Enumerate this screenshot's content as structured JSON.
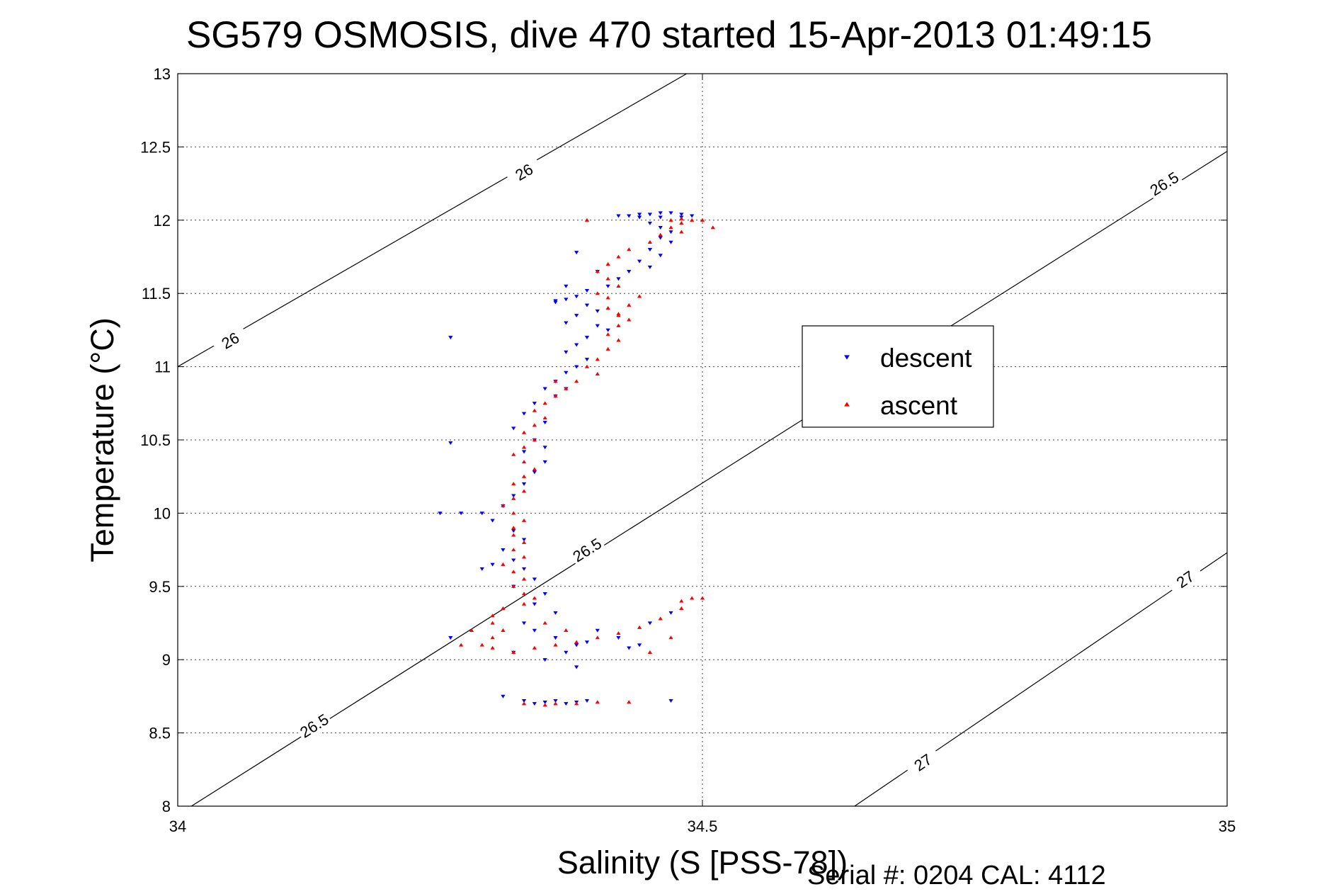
{
  "chart_data": {
    "type": "scatter",
    "title": "SG579 OSMOSIS, dive 470 started 15-Apr-2013 01:49:15",
    "xlabel": "Salinity (S [PSS-78])",
    "ylabel": "Temperature (°C)",
    "xlim": [
      34,
      35
    ],
    "ylim": [
      8,
      13
    ],
    "xticks": [
      34,
      34.5,
      35
    ],
    "xtick_labels": [
      "34",
      "34.5",
      "35"
    ],
    "yticks": [
      8,
      8.5,
      9,
      9.5,
      10,
      10.5,
      11,
      11.5,
      12,
      12.5,
      13
    ],
    "ytick_labels": [
      "8",
      "8.5",
      "9",
      "9.5",
      "10",
      "10.5",
      "11",
      "11.5",
      "12",
      "12.5",
      "13"
    ],
    "grid": true,
    "legend_position": "right",
    "footer": "Serial #: 0204  CAL: 4112",
    "density_contours": [
      {
        "level": "26",
        "points": [
          [
            34.0,
            11.0
          ],
          [
            34.485,
            13.0
          ]
        ],
        "labels": [
          [
            34.05,
            11.18
          ],
          [
            34.33,
            12.33
          ]
        ]
      },
      {
        "level": "26.5",
        "points": [
          [
            34.013,
            8.0
          ],
          [
            35.0,
            12.47
          ]
        ],
        "labels": [
          [
            34.13,
            8.55
          ],
          [
            34.39,
            9.75
          ],
          [
            34.94,
            12.25
          ]
        ]
      },
      {
        "level": "27",
        "points": [
          [
            34.645,
            8.0
          ],
          [
            35.0,
            9.73
          ]
        ],
        "labels": [
          [
            34.71,
            8.3
          ],
          [
            34.96,
            9.55
          ]
        ]
      }
    ],
    "series": [
      {
        "name": "descent",
        "color": "#0000ff",
        "marker": "triangle-down",
        "points": [
          [
            34.42,
            12.03
          ],
          [
            34.43,
            12.03
          ],
          [
            34.44,
            12.04
          ],
          [
            34.45,
            12.04
          ],
          [
            34.46,
            12.05
          ],
          [
            34.47,
            12.05
          ],
          [
            34.48,
            12.04
          ],
          [
            34.49,
            12.03
          ],
          [
            34.44,
            12.02
          ],
          [
            34.46,
            12.02
          ],
          [
            34.48,
            12.02
          ],
          [
            34.45,
            11.98
          ],
          [
            34.46,
            11.95
          ],
          [
            34.47,
            11.92
          ],
          [
            34.46,
            11.88
          ],
          [
            34.47,
            11.85
          ],
          [
            34.45,
            11.8
          ],
          [
            34.46,
            11.76
          ],
          [
            34.44,
            11.72
          ],
          [
            34.45,
            11.68
          ],
          [
            34.43,
            11.65
          ],
          [
            34.42,
            11.6
          ],
          [
            34.41,
            11.55
          ],
          [
            34.39,
            11.52
          ],
          [
            34.38,
            11.48
          ],
          [
            34.37,
            11.46
          ],
          [
            34.36,
            11.44
          ],
          [
            34.39,
            11.42
          ],
          [
            34.4,
            11.38
          ],
          [
            34.38,
            11.35
          ],
          [
            34.37,
            11.3
          ],
          [
            34.4,
            11.28
          ],
          [
            34.41,
            11.25
          ],
          [
            34.39,
            11.2
          ],
          [
            34.38,
            11.15
          ],
          [
            34.37,
            11.1
          ],
          [
            34.39,
            11.05
          ],
          [
            34.38,
            11.0
          ],
          [
            34.37,
            10.96
          ],
          [
            34.36,
            10.9
          ],
          [
            34.35,
            10.85
          ],
          [
            34.36,
            10.8
          ],
          [
            34.34,
            10.75
          ],
          [
            34.33,
            10.68
          ],
          [
            34.35,
            10.62
          ],
          [
            34.32,
            10.58
          ],
          [
            34.34,
            10.5
          ],
          [
            34.33,
            10.42
          ],
          [
            34.35,
            10.35
          ],
          [
            34.34,
            10.28
          ],
          [
            34.33,
            10.2
          ],
          [
            34.32,
            10.12
          ],
          [
            34.31,
            10.05
          ],
          [
            34.29,
            10.0
          ],
          [
            34.3,
            9.95
          ],
          [
            34.32,
            9.88
          ],
          [
            34.33,
            9.82
          ],
          [
            34.31,
            9.75
          ],
          [
            34.32,
            9.68
          ],
          [
            34.33,
            9.62
          ],
          [
            34.34,
            9.55
          ],
          [
            34.32,
            9.5
          ],
          [
            34.35,
            9.45
          ],
          [
            34.34,
            9.38
          ],
          [
            34.36,
            9.32
          ],
          [
            34.33,
            9.25
          ],
          [
            34.34,
            9.2
          ],
          [
            34.36,
            9.15
          ],
          [
            34.38,
            9.1
          ],
          [
            34.37,
            9.05
          ],
          [
            34.35,
            9.0
          ],
          [
            34.38,
            8.95
          ],
          [
            34.39,
            9.12
          ],
          [
            34.4,
            9.2
          ],
          [
            34.45,
            9.25
          ],
          [
            34.47,
            9.32
          ],
          [
            34.44,
            9.1
          ],
          [
            34.43,
            9.08
          ],
          [
            34.42,
            9.15
          ],
          [
            34.33,
            8.72
          ],
          [
            34.34,
            8.7
          ],
          [
            34.35,
            8.71
          ],
          [
            34.36,
            8.72
          ],
          [
            34.37,
            8.7
          ],
          [
            34.38,
            8.71
          ],
          [
            34.39,
            8.72
          ],
          [
            34.31,
            8.75
          ],
          [
            34.47,
            8.72
          ],
          [
            34.3,
            9.65
          ],
          [
            34.25,
            10.0
          ],
          [
            34.27,
            10.0
          ],
          [
            34.26,
            10.48
          ],
          [
            34.26,
            11.2
          ],
          [
            34.37,
            11.55
          ],
          [
            34.36,
            11.45
          ],
          [
            34.4,
            11.65
          ],
          [
            34.29,
            9.62
          ],
          [
            34.32,
            9.05
          ],
          [
            34.26,
            9.15
          ],
          [
            34.38,
            11.78
          ],
          [
            34.35,
            10.45
          ],
          [
            34.37,
            10.85
          ]
        ]
      },
      {
        "name": "ascent",
        "color": "#ff0000",
        "marker": "triangle-up",
        "points": [
          [
            34.47,
            12.0
          ],
          [
            34.48,
            12.01
          ],
          [
            34.49,
            12.0
          ],
          [
            34.5,
            12.0
          ],
          [
            34.48,
            11.98
          ],
          [
            34.47,
            11.95
          ],
          [
            34.48,
            11.92
          ],
          [
            34.46,
            11.9
          ],
          [
            34.45,
            11.85
          ],
          [
            34.43,
            11.8
          ],
          [
            34.42,
            11.75
          ],
          [
            34.41,
            11.7
          ],
          [
            34.4,
            11.65
          ],
          [
            34.41,
            11.6
          ],
          [
            34.42,
            11.55
          ],
          [
            34.4,
            11.5
          ],
          [
            34.41,
            11.47
          ],
          [
            34.43,
            11.42
          ],
          [
            34.41,
            11.4
          ],
          [
            34.42,
            11.36
          ],
          [
            34.43,
            11.32
          ],
          [
            34.42,
            11.28
          ],
          [
            34.41,
            11.22
          ],
          [
            34.42,
            11.18
          ],
          [
            34.41,
            11.12
          ],
          [
            34.4,
            11.05
          ],
          [
            34.39,
            11.0
          ],
          [
            34.4,
            10.95
          ],
          [
            34.38,
            10.9
          ],
          [
            34.37,
            10.85
          ],
          [
            34.36,
            10.8
          ],
          [
            34.35,
            10.75
          ],
          [
            34.34,
            10.7
          ],
          [
            34.35,
            10.65
          ],
          [
            34.34,
            10.6
          ],
          [
            34.33,
            10.55
          ],
          [
            34.34,
            10.5
          ],
          [
            34.33,
            10.45
          ],
          [
            34.32,
            10.4
          ],
          [
            34.33,
            10.35
          ],
          [
            34.34,
            10.3
          ],
          [
            34.33,
            10.25
          ],
          [
            34.32,
            10.2
          ],
          [
            34.33,
            10.15
          ],
          [
            34.32,
            10.1
          ],
          [
            34.31,
            10.05
          ],
          [
            34.32,
            10.0
          ],
          [
            34.33,
            9.95
          ],
          [
            34.32,
            9.9
          ],
          [
            34.32,
            9.85
          ],
          [
            34.33,
            9.8
          ],
          [
            34.32,
            9.75
          ],
          [
            34.33,
            9.7
          ],
          [
            34.31,
            9.65
          ],
          [
            34.32,
            9.6
          ],
          [
            34.33,
            9.55
          ],
          [
            34.32,
            9.5
          ],
          [
            34.33,
            9.45
          ],
          [
            34.34,
            9.42
          ],
          [
            34.33,
            9.38
          ],
          [
            34.31,
            9.35
          ],
          [
            34.3,
            9.3
          ],
          [
            34.3,
            9.25
          ],
          [
            34.31,
            9.2
          ],
          [
            34.3,
            9.15
          ],
          [
            34.29,
            9.1
          ],
          [
            34.3,
            9.08
          ],
          [
            34.32,
            9.05
          ],
          [
            34.34,
            9.08
          ],
          [
            34.36,
            9.1
          ],
          [
            34.38,
            9.12
          ],
          [
            34.4,
            9.15
          ],
          [
            34.42,
            9.18
          ],
          [
            34.44,
            9.22
          ],
          [
            34.46,
            9.28
          ],
          [
            34.48,
            9.35
          ],
          [
            34.5,
            9.42
          ],
          [
            34.49,
            9.42
          ],
          [
            34.48,
            9.4
          ],
          [
            34.33,
            8.7
          ],
          [
            34.35,
            8.69
          ],
          [
            34.36,
            8.7
          ],
          [
            34.38,
            8.7
          ],
          [
            34.4,
            8.71
          ],
          [
            34.43,
            8.71
          ],
          [
            34.39,
            12.0
          ],
          [
            34.51,
            11.95
          ],
          [
            34.28,
            9.2
          ],
          [
            34.27,
            9.1
          ],
          [
            34.37,
            9.2
          ],
          [
            34.45,
            9.05
          ],
          [
            34.47,
            9.15
          ],
          [
            34.35,
            9.25
          ],
          [
            34.44,
            11.48
          ],
          [
            34.42,
            11.35
          ],
          [
            34.36,
            10.9
          ]
        ]
      }
    ]
  },
  "legend": {
    "items": [
      {
        "label": "descent",
        "color": "#0000ff"
      },
      {
        "label": "ascent",
        "color": "#ff0000"
      }
    ]
  }
}
